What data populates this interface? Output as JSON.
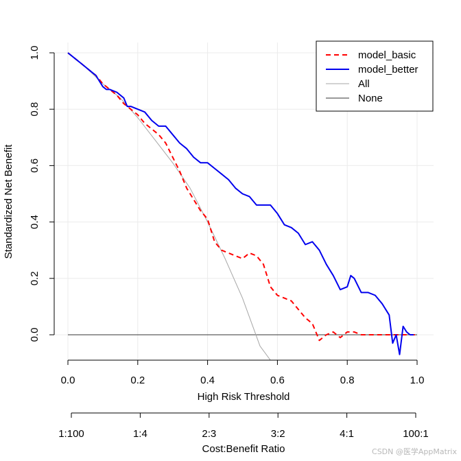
{
  "chart_data": {
    "type": "line",
    "title": "",
    "xlabel": "High Risk Threshold",
    "ylabel": "Standardized Net Benefit",
    "xlim": [
      0,
      1
    ],
    "ylim": [
      -0.09,
      1.06
    ],
    "x_ticks": [
      "0.0",
      "0.2",
      "0.4",
      "0.6",
      "0.8",
      "1.0"
    ],
    "y_ticks": [
      "0.0",
      "0.2",
      "0.4",
      "0.6",
      "0.8",
      "1.0"
    ],
    "grid": true,
    "legend_position": "top-right",
    "secondary_axis": {
      "label": "Cost:Benefit Ratio",
      "ticks": [
        "1:100",
        "1:4",
        "2:3",
        "3:2",
        "4:1",
        "100:1"
      ]
    },
    "series": [
      {
        "name": "model_basic",
        "color": "#ff0000",
        "style": "dashed",
        "x": [
          0.0,
          0.02,
          0.04,
          0.06,
          0.08,
          0.1,
          0.12,
          0.14,
          0.16,
          0.18,
          0.2,
          0.22,
          0.24,
          0.26,
          0.28,
          0.3,
          0.32,
          0.34,
          0.36,
          0.38,
          0.4,
          0.42,
          0.44,
          0.46,
          0.48,
          0.5,
          0.52,
          0.54,
          0.56,
          0.58,
          0.6,
          0.62,
          0.64,
          0.66,
          0.68,
          0.7,
          0.72,
          0.74,
          0.76,
          0.78,
          0.8,
          0.82,
          0.84,
          0.86,
          0.88,
          0.9,
          0.92,
          0.94,
          0.96,
          0.98,
          1.0
        ],
        "y": [
          1.0,
          0.98,
          0.96,
          0.94,
          0.92,
          0.89,
          0.87,
          0.85,
          0.82,
          0.8,
          0.78,
          0.75,
          0.73,
          0.71,
          0.68,
          0.63,
          0.58,
          0.52,
          0.48,
          0.44,
          0.41,
          0.33,
          0.3,
          0.29,
          0.28,
          0.27,
          0.29,
          0.28,
          0.25,
          0.17,
          0.14,
          0.13,
          0.12,
          0.09,
          0.06,
          0.04,
          -0.02,
          0.0,
          0.01,
          -0.01,
          0.01,
          0.01,
          0.0,
          0.0,
          0.0,
          0.0,
          0.0,
          0.0,
          0.0,
          0.0,
          0.0
        ]
      },
      {
        "name": "model_better",
        "color": "#0000ee",
        "style": "solid",
        "x": [
          0.0,
          0.02,
          0.04,
          0.06,
          0.08,
          0.1,
          0.11,
          0.12,
          0.14,
          0.16,
          0.17,
          0.18,
          0.2,
          0.22,
          0.24,
          0.26,
          0.28,
          0.3,
          0.32,
          0.34,
          0.36,
          0.38,
          0.4,
          0.42,
          0.44,
          0.46,
          0.48,
          0.5,
          0.52,
          0.54,
          0.56,
          0.58,
          0.6,
          0.62,
          0.64,
          0.66,
          0.68,
          0.7,
          0.72,
          0.74,
          0.76,
          0.78,
          0.8,
          0.81,
          0.82,
          0.84,
          0.86,
          0.88,
          0.9,
          0.92,
          0.93,
          0.94,
          0.95,
          0.96,
          0.97,
          0.98,
          0.99
        ],
        "y": [
          1.0,
          0.98,
          0.96,
          0.94,
          0.92,
          0.88,
          0.87,
          0.87,
          0.86,
          0.84,
          0.81,
          0.81,
          0.8,
          0.79,
          0.76,
          0.74,
          0.74,
          0.71,
          0.68,
          0.66,
          0.63,
          0.61,
          0.61,
          0.59,
          0.57,
          0.55,
          0.52,
          0.5,
          0.49,
          0.46,
          0.46,
          0.46,
          0.43,
          0.39,
          0.38,
          0.36,
          0.32,
          0.33,
          0.3,
          0.25,
          0.21,
          0.16,
          0.17,
          0.21,
          0.2,
          0.15,
          0.15,
          0.14,
          0.11,
          0.07,
          -0.03,
          0.0,
          -0.07,
          0.03,
          0.01,
          0.0,
          0.0
        ]
      },
      {
        "name": "All",
        "color": "#a6a6a6",
        "style": "solid",
        "x": [
          0.0,
          0.05,
          0.1,
          0.15,
          0.2,
          0.25,
          0.3,
          0.35,
          0.4,
          0.45,
          0.5,
          0.55,
          0.58
        ],
        "y": [
          1.0,
          0.95,
          0.89,
          0.84,
          0.77,
          0.69,
          0.61,
          0.52,
          0.4,
          0.27,
          0.13,
          -0.04,
          -0.09
        ]
      },
      {
        "name": "None",
        "color": "#333333",
        "style": "solid",
        "x": [
          0.0,
          1.0
        ],
        "y": [
          0.0,
          0.0
        ]
      }
    ]
  },
  "watermark": "CSDN @医学AppMatrix"
}
